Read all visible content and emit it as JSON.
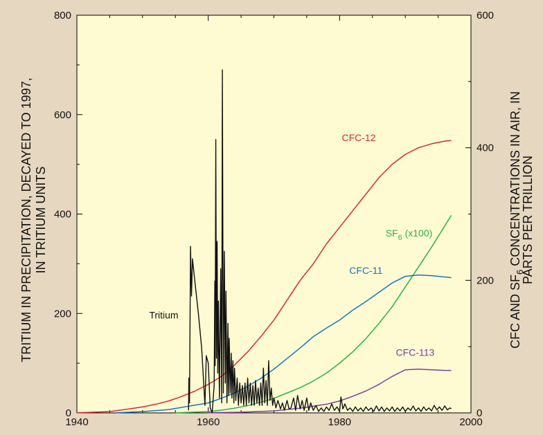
{
  "chart_data": {
    "type": "line",
    "background": "#e6d7c0",
    "plot_background": "#fefbd2",
    "x": {
      "ticks": [
        1940,
        1960,
        1980,
        2000
      ],
      "lim": [
        1940,
        2000
      ]
    },
    "y_left": {
      "label_line1": "TRITIUM IN PRECIPITATION, DECAYED TO 1997,",
      "label_line2": "IN TRITIUM UNITS",
      "ticks": [
        0,
        200,
        400,
        600,
        800
      ],
      "lim": [
        0,
        800
      ]
    },
    "y_right": {
      "label_line1": "CFC AND SF",
      "label_sub": "6",
      "label_line1_rest": " CONCENTRATIONS IN AIR, IN",
      "label_line2": "PARTS PER TRILLION",
      "ticks": [
        0,
        200,
        400,
        600
      ],
      "lim": [
        0,
        600
      ]
    },
    "series": [
      {
        "name": "CFC-12",
        "axis": "right",
        "color": "#e0262c",
        "label_x": 1985.5,
        "label_y": 410,
        "label_anchor": "end",
        "points": [
          [
            1940,
            0.2
          ],
          [
            1945,
            2
          ],
          [
            1948,
            6
          ],
          [
            1950,
            9
          ],
          [
            1952,
            13
          ],
          [
            1954,
            18
          ],
          [
            1956,
            25
          ],
          [
            1958,
            33
          ],
          [
            1960,
            43
          ],
          [
            1962,
            55
          ],
          [
            1964,
            72
          ],
          [
            1966,
            92
          ],
          [
            1968,
            115
          ],
          [
            1970,
            140
          ],
          [
            1972,
            170
          ],
          [
            1974,
            200
          ],
          [
            1976,
            225
          ],
          [
            1978,
            255
          ],
          [
            1980,
            280
          ],
          [
            1982,
            305
          ],
          [
            1984,
            330
          ],
          [
            1986,
            355
          ],
          [
            1988,
            375
          ],
          [
            1990,
            390
          ],
          [
            1992,
            400
          ],
          [
            1994,
            406
          ],
          [
            1996,
            410
          ],
          [
            1997,
            411
          ]
        ]
      },
      {
        "name": "SF",
        "name_sub": "6",
        "name_suffix": " (x100)",
        "axis": "right",
        "color": "#2eae4b",
        "label_x": 1987,
        "label_y": 266,
        "label_anchor": "start",
        "points": [
          [
            1955,
            0.1
          ],
          [
            1960,
            2
          ],
          [
            1962,
            4
          ],
          [
            1964,
            7
          ],
          [
            1966,
            11
          ],
          [
            1968,
            16
          ],
          [
            1970,
            22
          ],
          [
            1972,
            30
          ],
          [
            1974,
            38
          ],
          [
            1976,
            48
          ],
          [
            1978,
            60
          ],
          [
            1980,
            75
          ],
          [
            1982,
            92
          ],
          [
            1984,
            112
          ],
          [
            1986,
            135
          ],
          [
            1988,
            160
          ],
          [
            1990,
            190
          ],
          [
            1992,
            220
          ],
          [
            1994,
            250
          ],
          [
            1996,
            282
          ],
          [
            1997,
            298
          ]
        ]
      },
      {
        "name": "CFC-11",
        "axis": "right",
        "color": "#1673c2",
        "label_x": 1984,
        "label_y": 210,
        "label_anchor": "middle",
        "points": [
          [
            1946,
            0.2
          ],
          [
            1950,
            2
          ],
          [
            1954,
            5
          ],
          [
            1957,
            10
          ],
          [
            1960,
            15
          ],
          [
            1962,
            22
          ],
          [
            1964,
            30
          ],
          [
            1966,
            40
          ],
          [
            1968,
            52
          ],
          [
            1970,
            66
          ],
          [
            1972,
            82
          ],
          [
            1974,
            98
          ],
          [
            1976,
            115
          ],
          [
            1978,
            128
          ],
          [
            1980,
            140
          ],
          [
            1982,
            155
          ],
          [
            1984,
            168
          ],
          [
            1986,
            182
          ],
          [
            1988,
            196
          ],
          [
            1990,
            206
          ],
          [
            1992,
            208
          ],
          [
            1994,
            207
          ],
          [
            1996,
            205
          ],
          [
            1997,
            204
          ]
        ]
      },
      {
        "name": "CFC-113",
        "axis": "right",
        "color": "#7d3fa0",
        "label_x": 1991.5,
        "label_y": 86,
        "label_anchor": "middle",
        "points": [
          [
            1960,
            0.2
          ],
          [
            1965,
            1
          ],
          [
            1970,
            3
          ],
          [
            1974,
            7
          ],
          [
            1978,
            13
          ],
          [
            1980,
            18
          ],
          [
            1982,
            25
          ],
          [
            1984,
            33
          ],
          [
            1986,
            43
          ],
          [
            1988,
            55
          ],
          [
            1990,
            65
          ],
          [
            1992,
            66
          ],
          [
            1994,
            65
          ],
          [
            1996,
            64
          ],
          [
            1997,
            64
          ]
        ]
      },
      {
        "name": "Tritium",
        "axis": "left",
        "color": "#111111",
        "label_x": 1951,
        "label_y": 190,
        "label_anchor": "start",
        "points": [
          [
            1957.0,
            5
          ],
          [
            1957.05,
            70
          ],
          [
            1957.15,
            20
          ],
          [
            1957.3,
            335
          ],
          [
            1957.45,
            235
          ],
          [
            1957.6,
            310
          ],
          [
            1958.0,
            260
          ],
          [
            1958.5,
            200
          ],
          [
            1959.0,
            130
          ],
          [
            1959.5,
            15
          ],
          [
            1959.7,
            115
          ],
          [
            1960.0,
            100
          ],
          [
            1960.3,
            10
          ],
          [
            1960.6,
            0
          ],
          [
            1960.9,
            55
          ],
          [
            1961.0,
            265
          ],
          [
            1961.05,
            95
          ],
          [
            1961.15,
            550
          ],
          [
            1961.25,
            110
          ],
          [
            1961.35,
            345
          ],
          [
            1961.45,
            80
          ],
          [
            1961.55,
            225
          ],
          [
            1961.7,
            30
          ],
          [
            1961.9,
            290
          ],
          [
            1962.05,
            20
          ],
          [
            1962.15,
            690
          ],
          [
            1962.3,
            40
          ],
          [
            1962.45,
            325
          ],
          [
            1962.6,
            60
          ],
          [
            1962.7,
            245
          ],
          [
            1962.85,
            20
          ],
          [
            1963.0,
            180
          ],
          [
            1963.1,
            35
          ],
          [
            1963.2,
            150
          ],
          [
            1963.35,
            40
          ],
          [
            1963.5,
            120
          ],
          [
            1963.6,
            30
          ],
          [
            1963.75,
            105
          ],
          [
            1963.9,
            20
          ],
          [
            1964.0,
            90
          ],
          [
            1964.2,
            25
          ],
          [
            1964.4,
            70
          ],
          [
            1964.6,
            15
          ],
          [
            1964.8,
            60
          ],
          [
            1965.0,
            20
          ],
          [
            1965.2,
            55
          ],
          [
            1965.4,
            15
          ],
          [
            1965.6,
            60
          ],
          [
            1965.8,
            15
          ],
          [
            1966.0,
            70
          ],
          [
            1966.2,
            20
          ],
          [
            1966.4,
            60
          ],
          [
            1966.6,
            15
          ],
          [
            1966.8,
            55
          ],
          [
            1967.0,
            15
          ],
          [
            1967.2,
            65
          ],
          [
            1967.4,
            20
          ],
          [
            1967.6,
            50
          ],
          [
            1967.8,
            15
          ],
          [
            1968.0,
            60
          ],
          [
            1968.2,
            15
          ],
          [
            1968.4,
            90
          ],
          [
            1968.6,
            20
          ],
          [
            1968.8,
            65
          ],
          [
            1969.0,
            15
          ],
          [
            1969.2,
            105
          ],
          [
            1969.4,
            25
          ],
          [
            1969.6,
            50
          ],
          [
            1969.8,
            15
          ],
          [
            1970.0,
            30
          ],
          [
            1970.3,
            10
          ],
          [
            1970.6,
            25
          ],
          [
            1971.0,
            8
          ],
          [
            1971.3,
            20
          ],
          [
            1971.6,
            5
          ],
          [
            1972.0,
            25
          ],
          [
            1972.3,
            8
          ],
          [
            1972.6,
            10
          ],
          [
            1973.0,
            30
          ],
          [
            1973.3,
            5
          ],
          [
            1973.6,
            35
          ],
          [
            1974.0,
            8
          ],
          [
            1974.3,
            25
          ],
          [
            1974.6,
            5
          ],
          [
            1975.0,
            30
          ],
          [
            1975.3,
            5
          ],
          [
            1975.6,
            20
          ],
          [
            1976.0,
            5
          ],
          [
            1976.4,
            15
          ],
          [
            1976.8,
            3
          ],
          [
            1977.2,
            10
          ],
          [
            1977.6,
            3
          ],
          [
            1978.0,
            12
          ],
          [
            1978.4,
            5
          ],
          [
            1978.8,
            18
          ],
          [
            1979.2,
            5
          ],
          [
            1979.6,
            12
          ],
          [
            1980.0,
            3
          ],
          [
            1980.2,
            32
          ],
          [
            1980.5,
            8
          ],
          [
            1980.8,
            18
          ],
          [
            1981.2,
            5
          ],
          [
            1981.6,
            10
          ],
          [
            1982.0,
            3
          ],
          [
            1982.4,
            12
          ],
          [
            1982.8,
            4
          ],
          [
            1983.2,
            10
          ],
          [
            1983.6,
            3
          ],
          [
            1984.0,
            12
          ],
          [
            1984.4,
            5
          ],
          [
            1984.8,
            10
          ],
          [
            1985.2,
            3
          ],
          [
            1985.6,
            14
          ],
          [
            1986.0,
            4
          ],
          [
            1986.4,
            12
          ],
          [
            1986.8,
            3
          ],
          [
            1987.2,
            10
          ],
          [
            1987.6,
            4
          ],
          [
            1988.0,
            12
          ],
          [
            1988.4,
            3
          ],
          [
            1988.8,
            10
          ],
          [
            1989.2,
            4
          ],
          [
            1989.6,
            12
          ],
          [
            1990.0,
            3
          ],
          [
            1990.4,
            10
          ],
          [
            1990.8,
            5
          ],
          [
            1991.2,
            14
          ],
          [
            1991.6,
            4
          ],
          [
            1992.0,
            10
          ],
          [
            1992.4,
            3
          ],
          [
            1992.8,
            12
          ],
          [
            1993.2,
            5
          ],
          [
            1993.6,
            10
          ],
          [
            1994.0,
            4
          ],
          [
            1994.4,
            15
          ],
          [
            1994.8,
            6
          ],
          [
            1995.2,
            12
          ],
          [
            1995.6,
            5
          ],
          [
            1996.0,
            14
          ],
          [
            1996.4,
            6
          ],
          [
            1996.8,
            10
          ],
          [
            1997.0,
            8
          ]
        ]
      }
    ]
  }
}
